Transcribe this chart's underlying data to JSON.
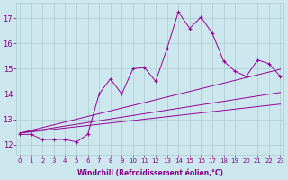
{
  "xlabel": "Windchill (Refroidissement éolien,°C)",
  "bg_color": "#cce8ee",
  "line_color": "#990099",
  "grid_color": "#aacccc",
  "x_ticks": [
    0,
    1,
    2,
    3,
    4,
    5,
    6,
    7,
    8,
    9,
    10,
    11,
    12,
    13,
    14,
    15,
    16,
    17,
    18,
    19,
    20,
    21,
    22,
    23
  ],
  "y_ticks": [
    12,
    13,
    14,
    15,
    16,
    17
  ],
  "xlim": [
    -0.3,
    23.3
  ],
  "ylim": [
    11.6,
    17.6
  ],
  "series_main": [
    12.4,
    12.4,
    12.2,
    12.2,
    12.2,
    12.1,
    12.4,
    14.0,
    14.6,
    14.0,
    15.0,
    15.05,
    14.5,
    15.8,
    17.25,
    16.6,
    17.05,
    16.4,
    15.3,
    14.9,
    14.7,
    15.35,
    15.2,
    14.7
  ],
  "series_linear": [
    [
      12.45,
      12.5,
      12.55,
      12.6,
      12.65,
      12.7,
      12.75,
      12.8,
      12.85,
      12.9,
      12.95,
      13.0,
      13.05,
      13.1,
      13.15,
      13.2,
      13.25,
      13.3,
      13.35,
      13.4,
      13.45,
      13.5,
      13.55,
      13.6
    ],
    [
      12.45,
      12.52,
      12.59,
      12.66,
      12.73,
      12.8,
      12.87,
      12.94,
      13.01,
      13.08,
      13.15,
      13.22,
      13.29,
      13.36,
      13.43,
      13.5,
      13.57,
      13.64,
      13.71,
      13.78,
      13.85,
      13.92,
      13.99,
      14.06
    ],
    [
      12.45,
      12.56,
      12.67,
      12.78,
      12.89,
      13.0,
      13.11,
      13.22,
      13.33,
      13.44,
      13.55,
      13.66,
      13.77,
      13.88,
      13.99,
      14.1,
      14.21,
      14.32,
      14.43,
      14.54,
      14.65,
      14.76,
      14.87,
      14.98
    ]
  ]
}
